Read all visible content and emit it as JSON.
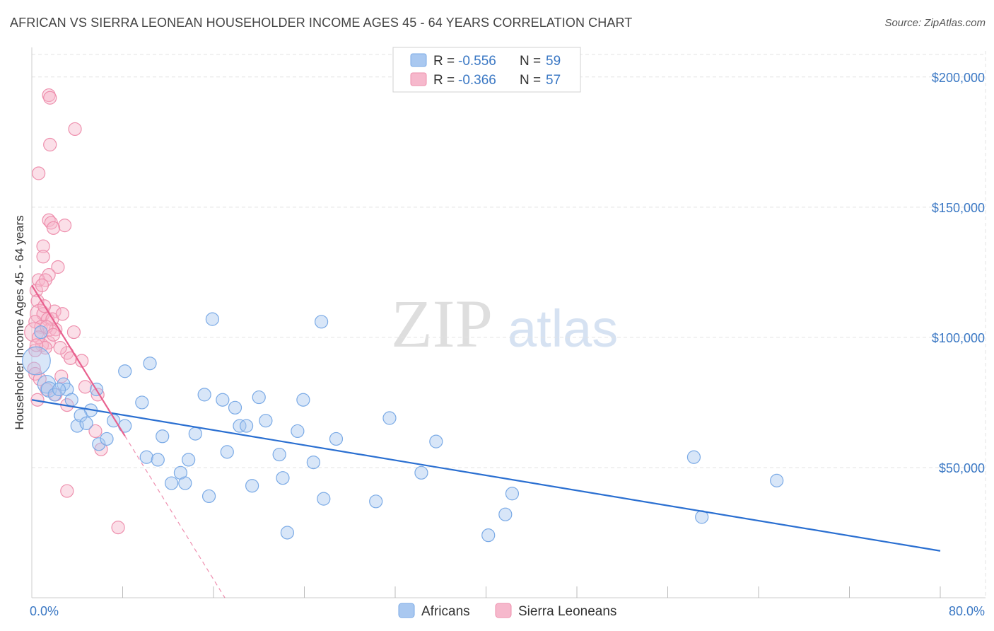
{
  "title": "AFRICAN VS SIERRA LEONEAN HOUSEHOLDER INCOME AGES 45 - 64 YEARS CORRELATION CHART",
  "source": "Source: ZipAtlas.com",
  "watermark": {
    "zip": "ZIP",
    "atlas": "atlas"
  },
  "colors": {
    "blue_fill": "#a9c8f0",
    "blue_stroke": "#7aaae6",
    "blue_line": "#2a6fd1",
    "pink_fill": "#f6b8cc",
    "pink_stroke": "#ee8fad",
    "pink_line": "#e8608e",
    "tick_text": "#3b78c4",
    "grid": "#e3e3e3"
  },
  "legend": {
    "rows": [
      {
        "r_label": "R = ",
        "r_value": "-0.556",
        "n_label": "N = ",
        "n_value": "59",
        "series": "Africans"
      },
      {
        "r_label": "R = ",
        "r_value": "-0.366",
        "n_label": "N = ",
        "n_value": "57",
        "series": "Sierra Leoneans"
      }
    ]
  },
  "chart_data": {
    "type": "scatter",
    "title": "AFRICAN VS SIERRA LEONEAN HOUSEHOLDER INCOME AGES 45 - 64 YEARS CORRELATION CHART",
    "xlabel": "",
    "ylabel": "Householder Income Ages 45 - 64 years",
    "xlim": [
      0,
      80
    ],
    "ylim": [
      0,
      210000
    ],
    "x_tick_labels": [
      {
        "value": 0,
        "label": "0.0%"
      },
      {
        "value": 80,
        "label": "80.0%"
      }
    ],
    "y_ticks": [
      {
        "value": 50000,
        "label": "$50,000"
      },
      {
        "value": 100000,
        "label": "$100,000"
      },
      {
        "value": 150000,
        "label": "$150,000"
      },
      {
        "value": 200000,
        "label": "$200,000"
      }
    ],
    "series": [
      {
        "name": "Africans",
        "color": "blue",
        "trend": {
          "x0": 0,
          "y0": 76000,
          "x1": 80,
          "y1": 18000,
          "solid_to": 80
        },
        "points": [
          [
            0.4,
            91000,
            2.2
          ],
          [
            1.3,
            82000,
            1.4
          ],
          [
            1.5,
            80000,
            1.2
          ],
          [
            2.0,
            78000,
            1.0
          ],
          [
            2.8,
            82000,
            1.0
          ],
          [
            0.8,
            102000,
            1.0
          ],
          [
            3.1,
            80000,
            1.0
          ],
          [
            3.5,
            76000,
            1.0
          ],
          [
            4.0,
            66000,
            1.0
          ],
          [
            5.2,
            72000,
            1.0
          ],
          [
            5.7,
            80000,
            1.0
          ],
          [
            4.3,
            70000,
            1.0
          ],
          [
            4.8,
            67000,
            1.0
          ],
          [
            5.9,
            59000,
            1.0
          ],
          [
            6.6,
            61000,
            1.0
          ],
          [
            7.2,
            68000,
            1.0
          ],
          [
            8.2,
            66000,
            1.0
          ],
          [
            8.2,
            87000,
            1.0
          ],
          [
            9.7,
            75000,
            1.0
          ],
          [
            10.4,
            90000,
            1.0
          ],
          [
            10.1,
            54000,
            1.0
          ],
          [
            11.1,
            53000,
            1.0
          ],
          [
            11.5,
            62000,
            1.0
          ],
          [
            12.3,
            44000,
            1.0
          ],
          [
            13.1,
            48000,
            1.0
          ],
          [
            13.5,
            44000,
            1.0
          ],
          [
            13.8,
            53000,
            1.0
          ],
          [
            14.4,
            63000,
            1.0
          ],
          [
            15.2,
            78000,
            1.0
          ],
          [
            15.6,
            39000,
            1.0
          ],
          [
            15.9,
            107000,
            1.0
          ],
          [
            16.8,
            76000,
            1.0
          ],
          [
            17.2,
            56000,
            1.0
          ],
          [
            17.9,
            73000,
            1.0
          ],
          [
            18.3,
            66000,
            1.0
          ],
          [
            18.9,
            66000,
            1.0
          ],
          [
            19.4,
            43000,
            1.0
          ],
          [
            20.0,
            77000,
            1.0
          ],
          [
            20.6,
            68000,
            1.0
          ],
          [
            21.8,
            55000,
            1.0
          ],
          [
            22.1,
            46000,
            1.0
          ],
          [
            22.5,
            25000,
            1.0
          ],
          [
            23.4,
            64000,
            1.0
          ],
          [
            23.9,
            76000,
            1.0
          ],
          [
            24.8,
            52000,
            1.0
          ],
          [
            25.5,
            106000,
            1.0
          ],
          [
            25.7,
            38000,
            1.0
          ],
          [
            26.8,
            61000,
            1.0
          ],
          [
            30.3,
            37000,
            1.0
          ],
          [
            31.5,
            69000,
            1.0
          ],
          [
            34.3,
            48000,
            1.0
          ],
          [
            35.6,
            60000,
            1.0
          ],
          [
            40.2,
            24000,
            1.0
          ],
          [
            41.7,
            32000,
            1.0
          ],
          [
            42.3,
            40000,
            1.0
          ],
          [
            58.3,
            54000,
            1.0
          ],
          [
            59.0,
            31000,
            1.0
          ],
          [
            65.6,
            45000,
            1.0
          ],
          [
            2.4,
            80000,
            1.0
          ]
        ]
      },
      {
        "name": "Sierra Leoneans",
        "color": "pink",
        "trend": {
          "x0": 0,
          "y0": 120000,
          "x1": 17,
          "y1": 0,
          "solid_to": 8.2
        },
        "points": [
          [
            1.5,
            193000,
            1.0
          ],
          [
            1.6,
            192000,
            1.0
          ],
          [
            3.8,
            180000,
            1.0
          ],
          [
            1.6,
            174000,
            1.0
          ],
          [
            0.6,
            163000,
            1.0
          ],
          [
            1.5,
            145000,
            1.0
          ],
          [
            1.7,
            144000,
            1.0
          ],
          [
            2.9,
            143000,
            1.0
          ],
          [
            1.9,
            142000,
            1.0
          ],
          [
            1.0,
            135000,
            1.0
          ],
          [
            1.0,
            131000,
            1.0
          ],
          [
            2.3,
            127000,
            1.0
          ],
          [
            1.5,
            124000,
            1.0
          ],
          [
            0.6,
            122000,
            1.0
          ],
          [
            1.2,
            122000,
            1.0
          ],
          [
            0.4,
            118000,
            1.0
          ],
          [
            0.5,
            114000,
            1.0
          ],
          [
            2.0,
            110000,
            1.0
          ],
          [
            0.7,
            109000,
            1.5
          ],
          [
            1.0,
            109000,
            1.0
          ],
          [
            1.4,
            107000,
            1.0
          ],
          [
            0.3,
            106000,
            1.0
          ],
          [
            0.8,
            104000,
            1.0
          ],
          [
            1.6,
            103000,
            1.0
          ],
          [
            2.1,
            103000,
            1.0
          ],
          [
            3.7,
            102000,
            1.0
          ],
          [
            0.2,
            102000,
            1.5
          ],
          [
            1.5,
            98000,
            1.0
          ],
          [
            0.9,
            97000,
            1.0
          ],
          [
            1.2,
            96000,
            1.0
          ],
          [
            0.3,
            95000,
            1.0
          ],
          [
            3.1,
            94000,
            1.0
          ],
          [
            4.4,
            91000,
            1.0
          ],
          [
            0.2,
            88000,
            1.0
          ],
          [
            0.3,
            86000,
            1.0
          ],
          [
            2.6,
            85000,
            1.0
          ],
          [
            4.7,
            81000,
            1.0
          ],
          [
            1.3,
            80000,
            1.0
          ],
          [
            2.1,
            78000,
            1.0
          ],
          [
            5.8,
            78000,
            1.0
          ],
          [
            0.5,
            76000,
            1.0
          ],
          [
            3.1,
            74000,
            1.0
          ],
          [
            5.6,
            64000,
            1.0
          ],
          [
            6.1,
            57000,
            1.0
          ],
          [
            3.1,
            41000,
            1.0
          ],
          [
            7.6,
            27000,
            1.0
          ],
          [
            1.8,
            107000,
            1.0
          ],
          [
            0.6,
            100000,
            1.0
          ],
          [
            1.1,
            112000,
            1.0
          ],
          [
            2.5,
            96000,
            1.0
          ],
          [
            0.9,
            120000,
            1.0
          ],
          [
            1.3,
            104000,
            1.0
          ],
          [
            0.4,
            97000,
            1.0
          ],
          [
            2.7,
            109000,
            1.0
          ],
          [
            1.9,
            101000,
            1.0
          ],
          [
            0.7,
            84000,
            1.0
          ],
          [
            3.4,
            92000,
            1.0
          ]
        ]
      }
    ]
  }
}
